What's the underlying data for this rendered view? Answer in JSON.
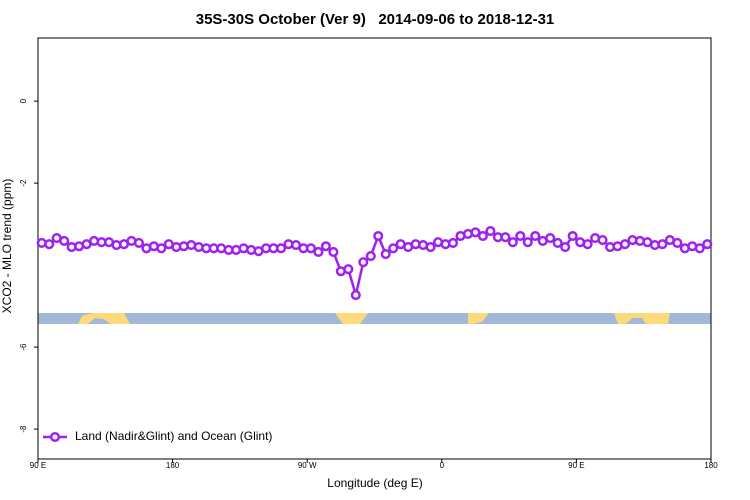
{
  "chart_data": {
    "type": "line",
    "title": "35S-30S October (Ver 9)   2014-09-06 to 2018-12-31",
    "xlabel": "Longitude (deg E)",
    "ylabel": "XCO2 - MLO trend (ppm)",
    "xlim": [
      90,
      540
    ],
    "xticks": [
      {
        "value": 90,
        "label": "90 E"
      },
      {
        "value": 180,
        "label": "180"
      },
      {
        "value": 270,
        "label": "90 W"
      },
      {
        "value": 360,
        "label": "0"
      },
      {
        "value": 450,
        "label": "90 E"
      },
      {
        "value": 540,
        "label": "180"
      }
    ],
    "ylim": [
      -8.73,
      1.54
    ],
    "yticks": [
      0,
      -2,
      -6,
      -8
    ],
    "legend": "bottom-left",
    "x": [
      92.5,
      97.5,
      102.5,
      107.5,
      112.5,
      117.5,
      122.5,
      127.5,
      132.5,
      137.5,
      142.5,
      147.5,
      152.5,
      157.5,
      162.5,
      167.5,
      172.5,
      177.5,
      182.5,
      187.5,
      192.5,
      197.5,
      202.5,
      207.5,
      212.5,
      217.5,
      222.5,
      227.5,
      232.5,
      237.5,
      242.5,
      247.5,
      252.5,
      257.5,
      262.5,
      267.5,
      272.5,
      277.5,
      282.5,
      287.5,
      292.5,
      297.5,
      302.5,
      307.5,
      312.5,
      317.5,
      322.5,
      327.5,
      332.5,
      337.5,
      342.5,
      347.5,
      352.5,
      357.5,
      362.5,
      367.5,
      372.5,
      377.5,
      382.5,
      387.5,
      392.5,
      397.5,
      402.5,
      407.5,
      412.5,
      417.5,
      422.5,
      427.5,
      432.5,
      437.5,
      442.5,
      447.5,
      452.5,
      457.5,
      462.5,
      467.5,
      472.5,
      477.5,
      482.5,
      487.5,
      492.5,
      497.5,
      502.5,
      507.5,
      512.5,
      517.5,
      522.5,
      527.5,
      532.5,
      537.5
    ],
    "series": [
      {
        "name": "Land (Nadir&Glint) and Ocean (Glint)",
        "color": "#a020f0",
        "values": [
          -3.46,
          -3.49,
          -3.34,
          -3.41,
          -3.56,
          -3.54,
          -3.49,
          -3.41,
          -3.44,
          -3.44,
          -3.51,
          -3.49,
          -3.41,
          -3.46,
          -3.59,
          -3.54,
          -3.59,
          -3.49,
          -3.56,
          -3.54,
          -3.51,
          -3.56,
          -3.59,
          -3.59,
          -3.59,
          -3.63,
          -3.63,
          -3.59,
          -3.63,
          -3.66,
          -3.59,
          -3.59,
          -3.59,
          -3.49,
          -3.51,
          -3.59,
          -3.59,
          -3.68,
          -3.54,
          -3.68,
          -4.15,
          -4.1,
          -4.73,
          -3.93,
          -3.78,
          -3.29,
          -3.73,
          -3.59,
          -3.49,
          -3.56,
          -3.49,
          -3.51,
          -3.56,
          -3.44,
          -3.49,
          -3.46,
          -3.29,
          -3.24,
          -3.2,
          -3.29,
          -3.17,
          -3.32,
          -3.32,
          -3.44,
          -3.29,
          -3.44,
          -3.29,
          -3.41,
          -3.34,
          -3.46,
          -3.56,
          -3.29,
          -3.44,
          -3.49,
          -3.34,
          -3.39,
          -3.56,
          -3.54,
          -3.49,
          -3.39,
          -3.41,
          -3.44,
          -3.51,
          -3.49,
          -3.39,
          -3.46,
          -3.59,
          -3.54,
          -3.59,
          -3.49
        ]
      }
    ]
  }
}
